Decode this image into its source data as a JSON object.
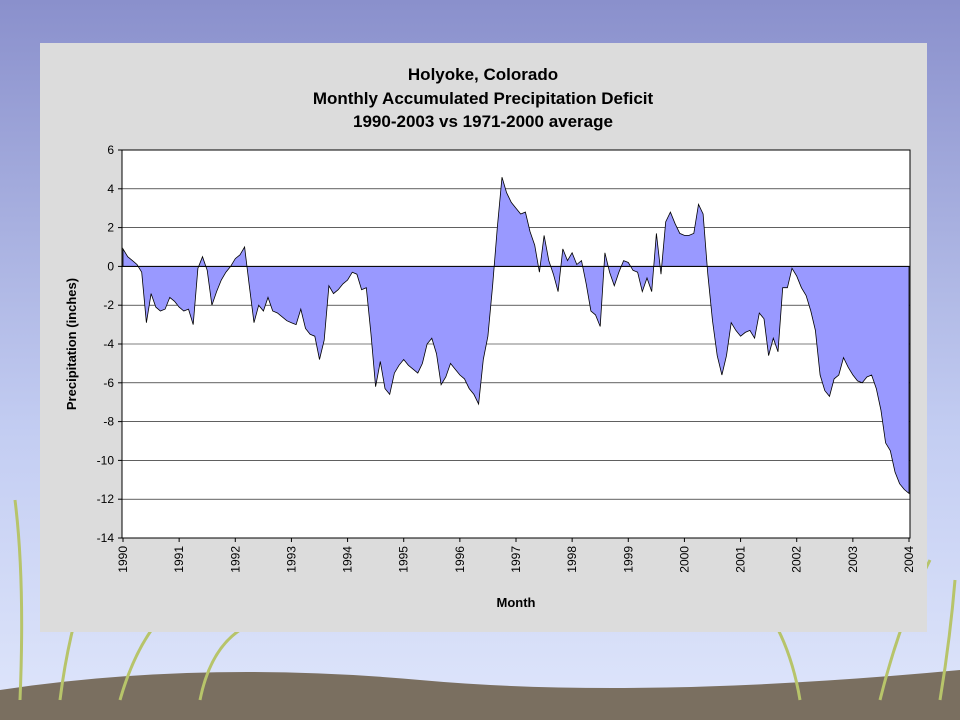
{
  "chart_data": {
    "type": "area",
    "title": [
      "Holyoke, Colorado",
      "Monthly Accumulated Precipitation Deficit",
      "1990-2003 vs 1971-2000 average"
    ],
    "x_label": "Month",
    "y_label": "Precipitation (inches)",
    "categories": [
      "1990",
      null,
      null,
      null,
      null,
      null,
      null,
      null,
      null,
      null,
      null,
      null,
      "1991",
      null,
      null,
      null,
      null,
      null,
      null,
      null,
      null,
      null,
      null,
      null,
      "1992",
      null,
      null,
      null,
      null,
      null,
      null,
      null,
      null,
      null,
      null,
      null,
      "1993",
      null,
      null,
      null,
      null,
      null,
      null,
      null,
      null,
      null,
      null,
      null,
      "1994",
      null,
      null,
      null,
      null,
      null,
      null,
      null,
      null,
      null,
      null,
      null,
      "1995",
      null,
      null,
      null,
      null,
      null,
      null,
      null,
      null,
      null,
      null,
      null,
      "1996",
      null,
      null,
      null,
      null,
      null,
      null,
      null,
      null,
      null,
      null,
      null,
      "1997",
      null,
      null,
      null,
      null,
      null,
      null,
      null,
      null,
      null,
      null,
      null,
      "1998",
      null,
      null,
      null,
      null,
      null,
      null,
      null,
      null,
      null,
      null,
      null,
      "1999",
      null,
      null,
      null,
      null,
      null,
      null,
      null,
      null,
      null,
      null,
      null,
      "2000",
      null,
      null,
      null,
      null,
      null,
      null,
      null,
      null,
      null,
      null,
      null,
      "2001",
      null,
      null,
      null,
      null,
      null,
      null,
      null,
      null,
      null,
      null,
      null,
      "2002",
      null,
      null,
      null,
      null,
      null,
      null,
      null,
      null,
      null,
      null,
      null,
      "2003",
      null,
      null,
      null,
      null,
      null,
      null,
      null,
      null,
      null,
      null,
      null,
      "2004"
    ],
    "values": [
      0.9,
      0.5,
      0.3,
      0.1,
      -0.3,
      -2.9,
      -1.4,
      -2.1,
      -2.3,
      -2.2,
      -1.6,
      -1.8,
      -2.1,
      -2.3,
      -2.2,
      -3.0,
      -0.1,
      0.5,
      -0.2,
      -2.0,
      -1.3,
      -0.7,
      -0.3,
      0.0,
      0.4,
      0.6,
      1.0,
      -1.0,
      -2.9,
      -2.0,
      -2.3,
      -1.6,
      -2.3,
      -2.4,
      -2.6,
      -2.8,
      -2.9,
      -3.0,
      -2.2,
      -3.2,
      -3.5,
      -3.6,
      -4.8,
      -3.8,
      -1.0,
      -1.4,
      -1.2,
      -0.9,
      -0.7,
      -0.3,
      -0.4,
      -1.2,
      -1.1,
      -3.5,
      -6.2,
      -4.9,
      -6.3,
      -6.6,
      -5.5,
      -5.1,
      -4.8,
      -5.1,
      -5.3,
      -5.5,
      -5.0,
      -4.0,
      -3.7,
      -4.5,
      -6.1,
      -5.7,
      -5.0,
      -5.3,
      -5.6,
      -5.8,
      -6.3,
      -6.6,
      -7.1,
      -4.8,
      -3.6,
      -1.0,
      2.0,
      4.6,
      3.8,
      3.3,
      3.0,
      2.7,
      2.8,
      1.8,
      1.1,
      -0.3,
      1.6,
      0.3,
      -0.4,
      -1.3,
      0.9,
      0.3,
      0.7,
      0.1,
      0.3,
      -0.9,
      -2.3,
      -2.5,
      -3.1,
      0.7,
      -0.3,
      -1.0,
      -0.3,
      0.3,
      0.2,
      -0.2,
      -0.3,
      -1.3,
      -0.6,
      -1.3,
      1.7,
      -0.4,
      2.3,
      2.8,
      2.2,
      1.7,
      1.6,
      1.6,
      1.7,
      3.2,
      2.7,
      -0.4,
      -2.8,
      -4.6,
      -5.6,
      -4.6,
      -2.9,
      -3.3,
      -3.6,
      -3.4,
      -3.3,
      -3.7,
      -2.4,
      -2.7,
      -4.6,
      -3.7,
      -4.4,
      -1.1,
      -1.1,
      -0.1,
      -0.5,
      -1.1,
      -1.5,
      -2.3,
      -3.3,
      -5.6,
      -6.4,
      -6.7,
      -5.8,
      -5.6,
      -4.7,
      -5.2,
      -5.6,
      -5.9,
      -6.0,
      -5.7,
      -5.6,
      -6.3,
      -7.4,
      -9.1,
      -9.5,
      -10.6,
      -11.2,
      -11.5,
      -11.7
    ],
    "color": "#9999ff",
    "ylim": [
      -14,
      6
    ],
    "yticks": [
      -14,
      -12,
      -10,
      -8,
      -6,
      -4,
      -2,
      0,
      2,
      4,
      6
    ],
    "grid": true
  }
}
